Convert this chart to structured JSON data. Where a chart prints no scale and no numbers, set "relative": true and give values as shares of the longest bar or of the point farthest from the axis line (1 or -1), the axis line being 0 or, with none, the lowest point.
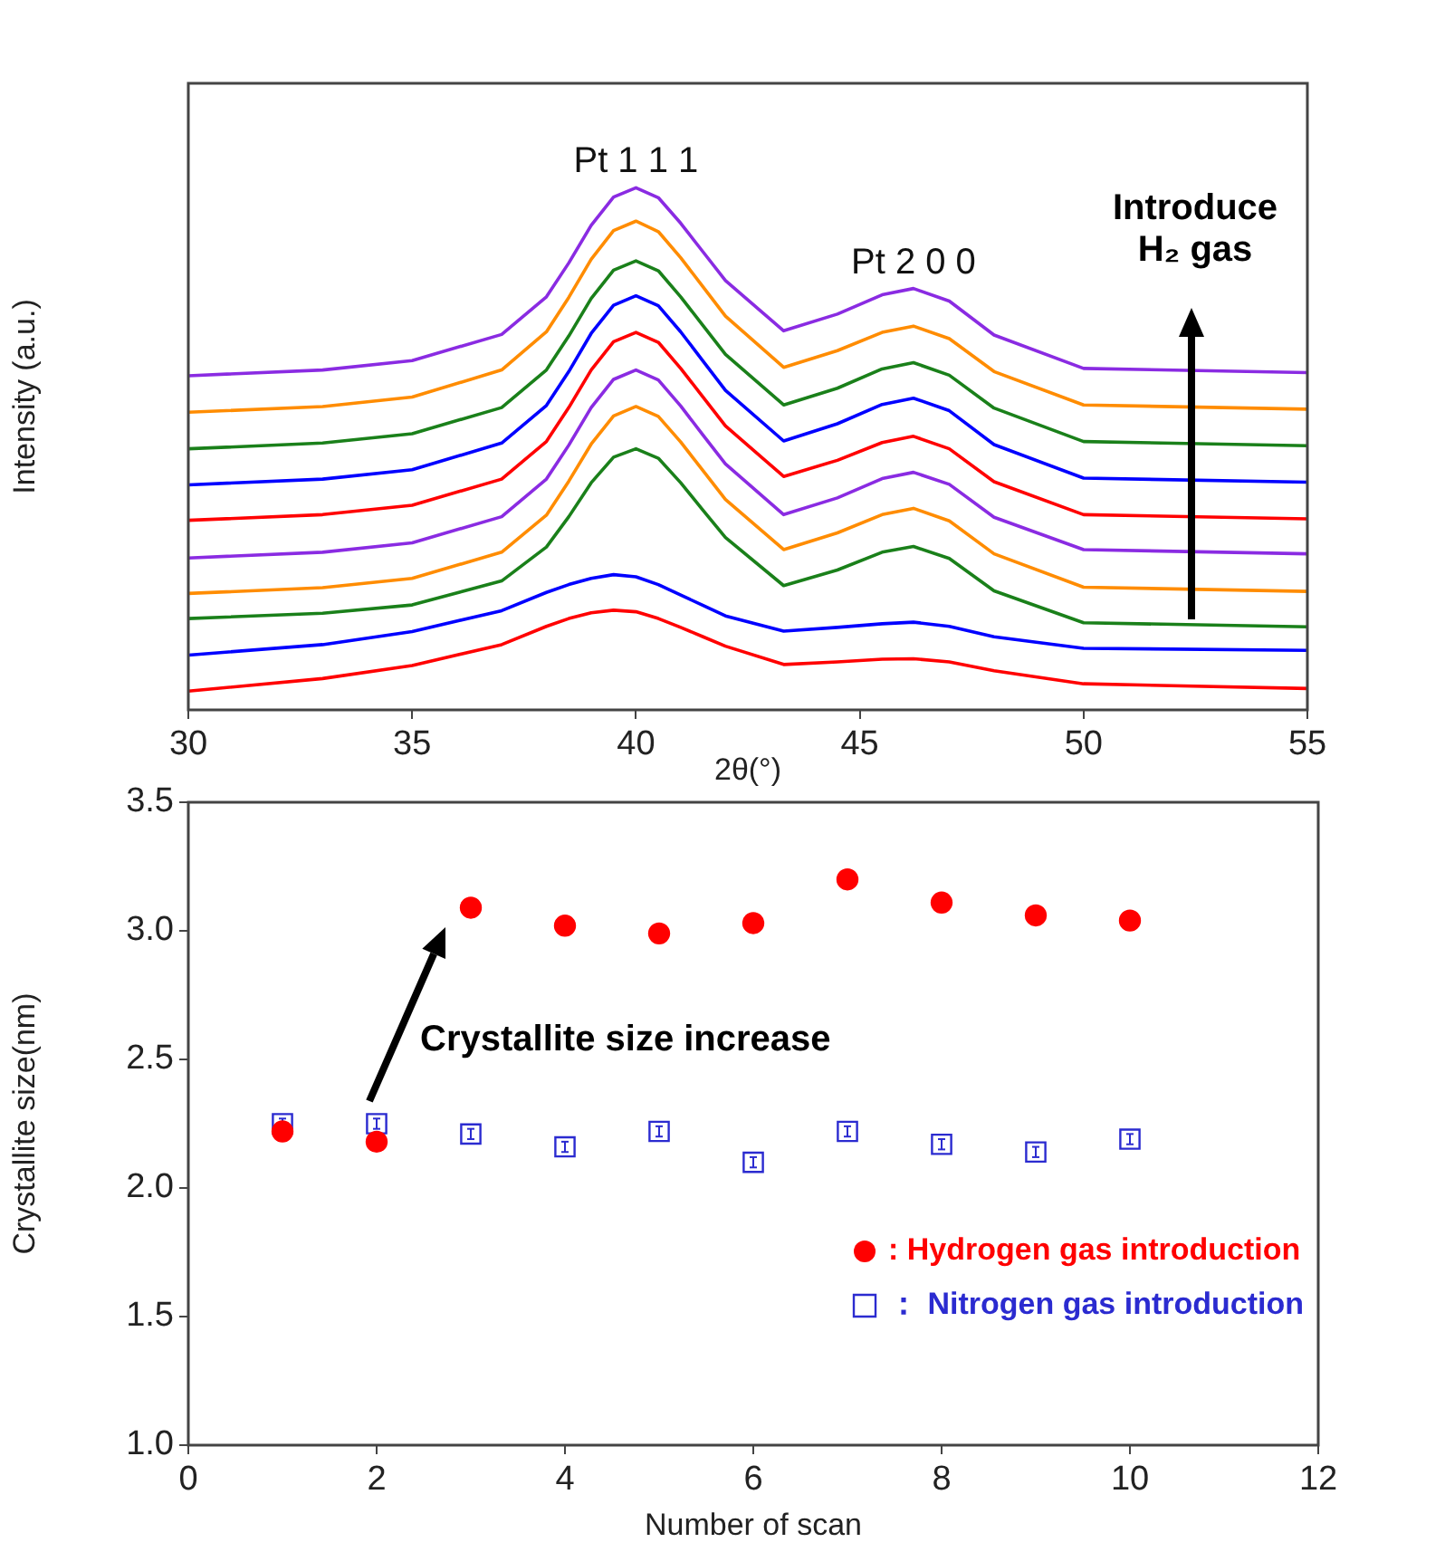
{
  "chart_data": [
    {
      "type": "line",
      "relative": true,
      "xlabel": "2θ(°)",
      "ylabel": "Intensity (a.u.)",
      "x": [
        30,
        33,
        35,
        37,
        38,
        38.5,
        39,
        39.5,
        40,
        40.5,
        41,
        41.5,
        42,
        43.3,
        44.5,
        45.5,
        46.2,
        47,
        48,
        50,
        55
      ],
      "xlim": [
        30,
        55
      ],
      "xticks": [
        30,
        35,
        40,
        45,
        50,
        55
      ],
      "tick_labels": "x",
      "grid": false,
      "marker": "none",
      "line_style": "solid",
      "annotations": [
        {
          "text": "Pt 1 1 1",
          "x": 40,
          "y": 1.0
        },
        {
          "text": "Pt 2 0 0",
          "x": 46.2,
          "y": 0.807
        },
        "Introduce H₂ gas"
      ],
      "series": [
        {
          "color": "#8a2be2",
          "values": [
            0.64,
            0.651,
            0.669,
            0.719,
            0.791,
            0.856,
            0.928,
            0.982,
            1.0,
            0.981,
            0.932,
            0.877,
            0.822,
            0.726,
            0.758,
            0.795,
            0.807,
            0.783,
            0.718,
            0.654,
            0.646
          ]
        },
        {
          "color": "#ff8c00",
          "values": [
            0.57,
            0.581,
            0.599,
            0.651,
            0.724,
            0.79,
            0.863,
            0.918,
            0.936,
            0.916,
            0.866,
            0.81,
            0.754,
            0.656,
            0.688,
            0.723,
            0.735,
            0.711,
            0.648,
            0.584,
            0.576
          ]
        },
        {
          "color": "#1a801a",
          "values": [
            0.5,
            0.511,
            0.529,
            0.579,
            0.651,
            0.716,
            0.788,
            0.842,
            0.86,
            0.841,
            0.791,
            0.736,
            0.681,
            0.584,
            0.616,
            0.653,
            0.665,
            0.641,
            0.578,
            0.514,
            0.506
          ]
        },
        {
          "color": "#0000ff",
          "values": [
            0.431,
            0.442,
            0.46,
            0.511,
            0.583,
            0.648,
            0.721,
            0.775,
            0.793,
            0.774,
            0.724,
            0.668,
            0.612,
            0.515,
            0.548,
            0.585,
            0.597,
            0.573,
            0.508,
            0.444,
            0.436
          ]
        },
        {
          "color": "#ff0000",
          "values": [
            0.363,
            0.374,
            0.392,
            0.442,
            0.514,
            0.579,
            0.651,
            0.705,
            0.723,
            0.704,
            0.654,
            0.599,
            0.544,
            0.447,
            0.478,
            0.512,
            0.524,
            0.5,
            0.437,
            0.374,
            0.366
          ]
        },
        {
          "color": "#8a2be2",
          "values": [
            0.291,
            0.302,
            0.32,
            0.37,
            0.442,
            0.507,
            0.579,
            0.633,
            0.651,
            0.632,
            0.582,
            0.526,
            0.471,
            0.374,
            0.406,
            0.443,
            0.455,
            0.432,
            0.369,
            0.307,
            0.299
          ]
        },
        {
          "color": "#ff8c00",
          "values": [
            0.223,
            0.234,
            0.252,
            0.302,
            0.373,
            0.438,
            0.509,
            0.563,
            0.581,
            0.562,
            0.513,
            0.458,
            0.403,
            0.307,
            0.339,
            0.374,
            0.386,
            0.362,
            0.299,
            0.235,
            0.227
          ]
        },
        {
          "color": "#1a801a",
          "values": [
            0.175,
            0.185,
            0.201,
            0.247,
            0.312,
            0.37,
            0.435,
            0.484,
            0.5,
            0.482,
            0.435,
            0.382,
            0.33,
            0.238,
            0.268,
            0.302,
            0.313,
            0.29,
            0.228,
            0.167,
            0.159
          ]
        },
        {
          "color": "#0000ff",
          "values": [
            0.105,
            0.125,
            0.15,
            0.19,
            0.225,
            0.24,
            0.252,
            0.259,
            0.255,
            0.24,
            0.22,
            0.2,
            0.18,
            0.151,
            0.158,
            0.165,
            0.168,
            0.16,
            0.14,
            0.118,
            0.114
          ]
        },
        {
          "color": "#ff0000",
          "values": [
            0.036,
            0.06,
            0.085,
            0.125,
            0.16,
            0.175,
            0.186,
            0.191,
            0.188,
            0.175,
            0.158,
            0.14,
            0.122,
            0.087,
            0.092,
            0.097,
            0.098,
            0.092,
            0.075,
            0.05,
            0.041
          ]
        }
      ]
    },
    {
      "type": "scatter",
      "xlabel": "Number of scan",
      "ylabel": "Crystallite size(nm)",
      "x": [
        1,
        2,
        3,
        4,
        5,
        6,
        7,
        8,
        9,
        10
      ],
      "xlim": [
        0,
        12
      ],
      "xticks": [
        0,
        2,
        4,
        6,
        8,
        10,
        12
      ],
      "ylim": [
        1,
        3.5
      ],
      "yticks": [
        {
          "value": 1,
          "label": "1.0"
        },
        {
          "value": 1.5,
          "label": "1.5"
        },
        {
          "value": 2,
          "label": "2.0"
        },
        {
          "value": 2.5,
          "label": "2.5"
        },
        {
          "value": 3,
          "label": "3.0"
        },
        {
          "value": 3.5,
          "label": "3.5"
        }
      ],
      "grid": false,
      "legend": "bottom right",
      "annotations": [
        "Crystallite size increase"
      ],
      "series": [
        {
          "name": ": Hydrogen gas introduction",
          "color": "#ff0000",
          "marker": "circle",
          "values": [
            2.22,
            2.18,
            3.09,
            3.02,
            2.99,
            3.03,
            3.2,
            3.11,
            3.06,
            3.04
          ]
        },
        {
          "name": "： Nitrogen gas introduction",
          "color": "#2b2bd0",
          "marker": "square",
          "values": [
            2.25,
            2.25,
            2.21,
            2.16,
            2.22,
            2.1,
            2.22,
            2.17,
            2.14,
            2.19
          ],
          "errors": [
            0.02,
            0.02,
            0.02,
            0.02,
            0.02,
            0.02,
            0.02,
            0.02,
            0.02,
            0.02
          ]
        }
      ]
    }
  ]
}
